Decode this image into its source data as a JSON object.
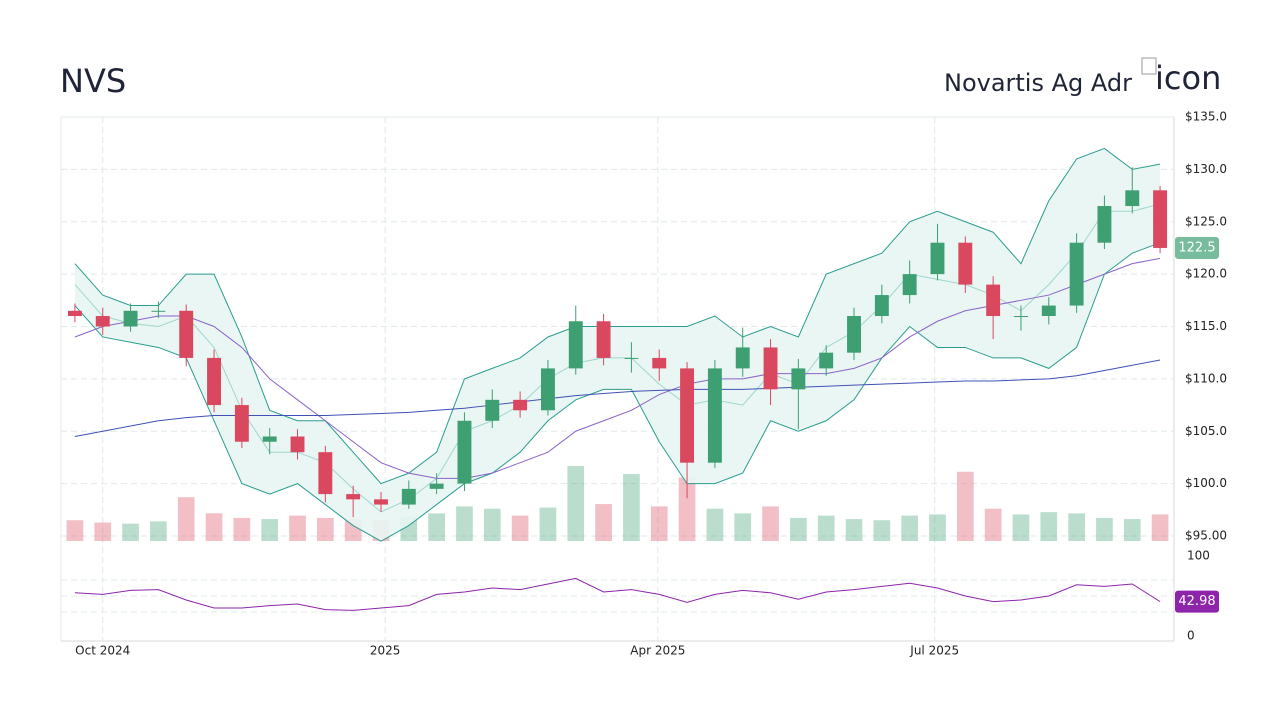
{
  "header": {
    "symbol": "NVS",
    "name": "Novartis Ag Adr",
    "icon_alt": "icon"
  },
  "chart_data": {
    "type": "candlestick",
    "xlim": [
      0,
      40
    ],
    "xticks": [
      {
        "value": 1.5,
        "label": "Oct 2024"
      },
      {
        "value": 11.65,
        "label": "2025"
      },
      {
        "value": 21.45,
        "label": "Apr 2025"
      },
      {
        "value": 31.4,
        "label": "Jul 2025"
      }
    ],
    "ylim": [
      95,
      135
    ],
    "yticks": [
      {
        "value": 95,
        "label": "$95.00"
      },
      {
        "value": 100,
        "label": "$100.0"
      },
      {
        "value": 105,
        "label": "$105.0"
      },
      {
        "value": 110,
        "label": "$110.0"
      },
      {
        "value": 115,
        "label": "$115.0"
      },
      {
        "value": 120,
        "label": "$120.0"
      },
      {
        "value": 125,
        "label": "$125.0"
      },
      {
        "value": 130,
        "label": "$130.0"
      },
      {
        "value": 135,
        "label": "$135.0"
      }
    ],
    "grid": true,
    "up_color": "#3d9f72",
    "down_color": "#d9485f",
    "open": [
      116.5,
      116,
      115,
      116.5,
      116.5,
      112,
      107.5,
      104,
      104.5,
      103,
      99,
      98.5,
      98,
      99.5,
      100,
      106,
      108,
      107,
      111,
      115.5,
      112,
      112,
      111,
      102,
      111,
      113,
      109,
      111,
      112.5,
      116,
      118,
      120,
      123,
      119,
      116,
      116,
      117,
      123,
      126.5,
      128
    ],
    "high": [
      117.2,
      116.8,
      117.2,
      117.4,
      117.1,
      112.8,
      108.2,
      105.3,
      105.2,
      103.6,
      99.8,
      99.2,
      100.3,
      101,
      106.8,
      109,
      108.8,
      111.8,
      117,
      116.2,
      113.5,
      112.8,
      111.6,
      111.8,
      114.9,
      113.8,
      111.9,
      113.2,
      116.8,
      119,
      121.3,
      124.8,
      123.6,
      119.8,
      117,
      117.8,
      123.9,
      127.5,
      130.2,
      128.4
    ],
    "low": [
      115.4,
      114.2,
      114.5,
      115.8,
      111.2,
      106.8,
      103.4,
      102.8,
      102.3,
      98.2,
      96.8,
      97.3,
      97.6,
      99,
      99.3,
      105.3,
      106.3,
      106.5,
      110.4,
      111.3,
      110.6,
      109.8,
      98.6,
      101.5,
      110.2,
      107.5,
      105.2,
      110.3,
      111.8,
      115.3,
      117.2,
      119.4,
      118.2,
      113.8,
      114.6,
      115.2,
      116.3,
      122.4,
      125.8,
      122
    ],
    "close": [
      116,
      115,
      116.5,
      116.5,
      112,
      107.5,
      104,
      104.5,
      103,
      99,
      98.5,
      98,
      99.5,
      100,
      106,
      108,
      107,
      111,
      115.5,
      112,
      112,
      111,
      102,
      111,
      113,
      109,
      111,
      112.5,
      116,
      118,
      120,
      123,
      119,
      116,
      116,
      117,
      123,
      126.5,
      128,
      122.5
    ],
    "close_label": "122.5",
    "volume": [
      1.8,
      1.6,
      1.5,
      1.7,
      3.8,
      2.4,
      2.0,
      1.9,
      2.2,
      2.0,
      1.9,
      1.8,
      2.1,
      2.4,
      3.0,
      2.8,
      2.2,
      2.9,
      6.5,
      3.2,
      5.8,
      3.0,
      5.5,
      2.8,
      2.4,
      3.0,
      2.0,
      2.2,
      1.9,
      1.8,
      2.2,
      2.3,
      6.0,
      2.8,
      2.3,
      2.5,
      2.4,
      2.0,
      1.9,
      2.3
    ],
    "bb_upper": {
      "color": "#2a9d8f",
      "values": [
        121,
        118,
        117,
        117,
        120,
        120,
        114,
        107,
        106,
        106,
        103,
        100,
        101,
        103,
        110,
        111,
        112,
        114,
        115,
        115,
        115,
        115,
        115,
        116,
        114,
        115,
        114,
        120,
        121,
        122,
        125,
        126,
        125,
        124,
        121,
        127,
        131,
        132,
        130,
        130.5
      ]
    },
    "bb_middle": {
      "color": "#9fd6cc",
      "values": [
        119,
        116,
        115.3,
        115,
        116,
        113,
        107,
        103,
        103,
        102,
        99.5,
        97.3,
        98.5,
        100.5,
        105,
        106,
        107.5,
        110,
        111.5,
        112,
        112,
        109.5,
        107.5,
        108,
        107.5,
        110.5,
        109.5,
        113,
        114.5,
        117,
        120,
        119.5,
        119,
        118,
        116.5,
        119,
        122,
        126,
        126,
        126.7
      ]
    },
    "bb_lower": {
      "color": "#2a9d8f",
      "values": [
        117,
        114,
        113.5,
        113,
        112,
        106,
        100,
        99,
        100,
        98,
        96,
        94.5,
        96,
        98,
        100,
        101,
        103,
        106,
        108,
        109,
        109,
        104,
        100,
        100,
        101,
        106,
        105,
        106,
        108,
        112,
        115,
        113,
        113,
        112,
        112,
        111,
        113,
        120,
        122,
        123
      ]
    },
    "band_fill": "#e8f5f2",
    "sma50": {
      "color": "#8a63c7",
      "values": [
        114,
        115,
        115.5,
        116,
        116,
        115,
        113,
        110,
        108,
        106,
        104,
        102,
        101,
        100.5,
        100.5,
        101,
        102,
        103,
        105,
        106,
        107,
        108.5,
        109.5,
        110,
        110,
        110.5,
        110.5,
        110.5,
        111,
        112,
        114,
        115.5,
        116.5,
        117,
        117.5,
        118,
        119,
        120,
        121,
        121.5
      ]
    },
    "sma200": {
      "color": "#3f51b5",
      "values": [
        104.5,
        105,
        105.5,
        106,
        106.3,
        106.5,
        106.5,
        106.5,
        106.5,
        106.5,
        106.6,
        106.7,
        106.8,
        107,
        107.2,
        107.5,
        107.8,
        108.1,
        108.4,
        108.6,
        108.8,
        108.9,
        109,
        109,
        109,
        109.1,
        109.2,
        109.3,
        109.4,
        109.5,
        109.6,
        109.7,
        109.8,
        109.8,
        109.9,
        110,
        110.3,
        110.8,
        111.3,
        111.8
      ]
    },
    "rsi": {
      "color": "#8e24aa",
      "values": [
        54,
        52,
        57,
        58,
        45,
        35,
        35,
        38,
        40,
        33,
        32,
        35,
        38,
        52,
        55,
        60,
        58,
        65,
        72,
        55,
        58,
        52,
        42,
        52,
        57,
        54,
        46,
        55,
        58,
        62,
        66,
        60,
        50,
        43,
        45,
        50,
        64,
        62,
        65,
        42.98
      ],
      "label": "42.98"
    },
    "rsi_ylim": [
      0,
      100
    ],
    "rsi_yticks": [
      0,
      100
    ],
    "rsi_lines": [
      30,
      50,
      70
    ]
  }
}
